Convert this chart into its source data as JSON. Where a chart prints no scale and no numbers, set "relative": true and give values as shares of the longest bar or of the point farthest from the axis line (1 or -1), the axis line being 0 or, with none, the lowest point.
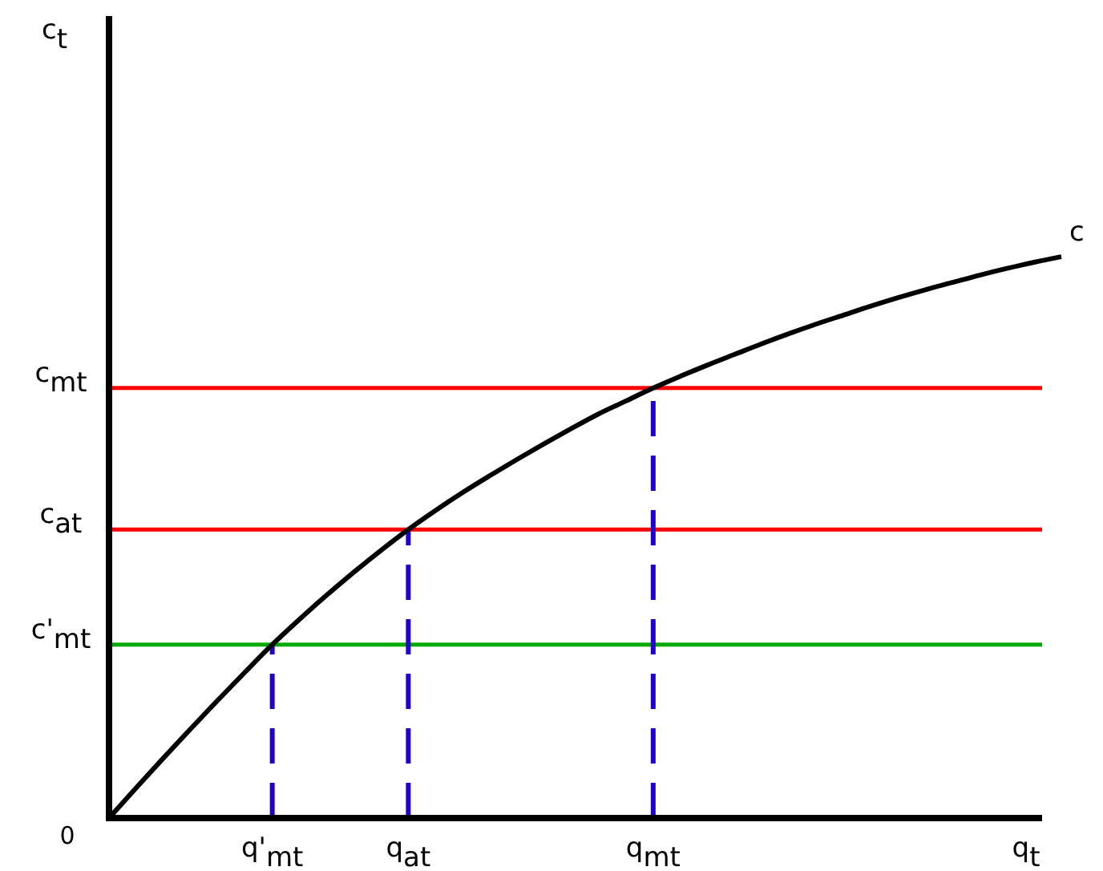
{
  "chart_data": {
    "type": "line",
    "relative": true,
    "xlabel": "q$_{t}$",
    "annotations": [
      "c$_{t}$",
      "0"
    ],
    "categories": [
      null,
      null,
      null,
      null,
      null,
      null,
      "q'$_{mt}$",
      null,
      null,
      null,
      null,
      "q$_{at}$",
      null,
      null,
      null,
      null,
      null,
      null,
      null,
      null,
      "q$_{mt}$",
      null,
      null,
      null,
      null,
      null,
      null,
      null,
      null,
      null,
      null,
      null,
      null,
      null,
      null,
      null
    ],
    "tick_labels": "x",
    "grid": false,
    "legend": false,
    "marker": "none",
    "line_style": "solid",
    "series": [
      {
        "name": "c",
        "color": "#000000",
        "values": [
          0,
          0.054,
          0.107,
          0.159,
          0.21,
          0.26,
          0.309,
          0.354,
          0.397,
          0.438,
          0.477,
          0.514,
          0.548,
          0.58,
          0.61,
          0.639,
          0.667,
          0.694,
          0.72,
          0.743,
          0.766,
          0.787,
          0.807,
          0.826,
          0.845,
          0.863,
          0.88,
          0.896,
          0.912,
          0.927,
          0.941,
          0.954,
          0.967,
          0.979,
          0.99,
          1
        ]
      }
    ],
    "ref_lines": [
      {
        "axis": "y",
        "value": 0.766,
        "label": "c$_{mt}$",
        "color": "#ff0000",
        "line_style": "solid"
      },
      {
        "axis": "y",
        "value": 0.514,
        "label": "c$_{at}$",
        "color": "#ff0000",
        "line_style": "solid"
      },
      {
        "axis": "y",
        "value": 0.309,
        "label": "c'$_{mt}$",
        "color": "#00aa00",
        "line_style": "solid"
      },
      {
        "axis": "x",
        "value": "q'$_{mt}$",
        "color": "#2200cc",
        "line_style": "dashed"
      },
      {
        "axis": "x",
        "value": "q$_{at}$",
        "color": "#2200cc",
        "line_style": "dashed"
      },
      {
        "axis": "x",
        "value": "q$_{mt}$",
        "color": "#2200cc",
        "line_style": "dashed"
      }
    ]
  }
}
